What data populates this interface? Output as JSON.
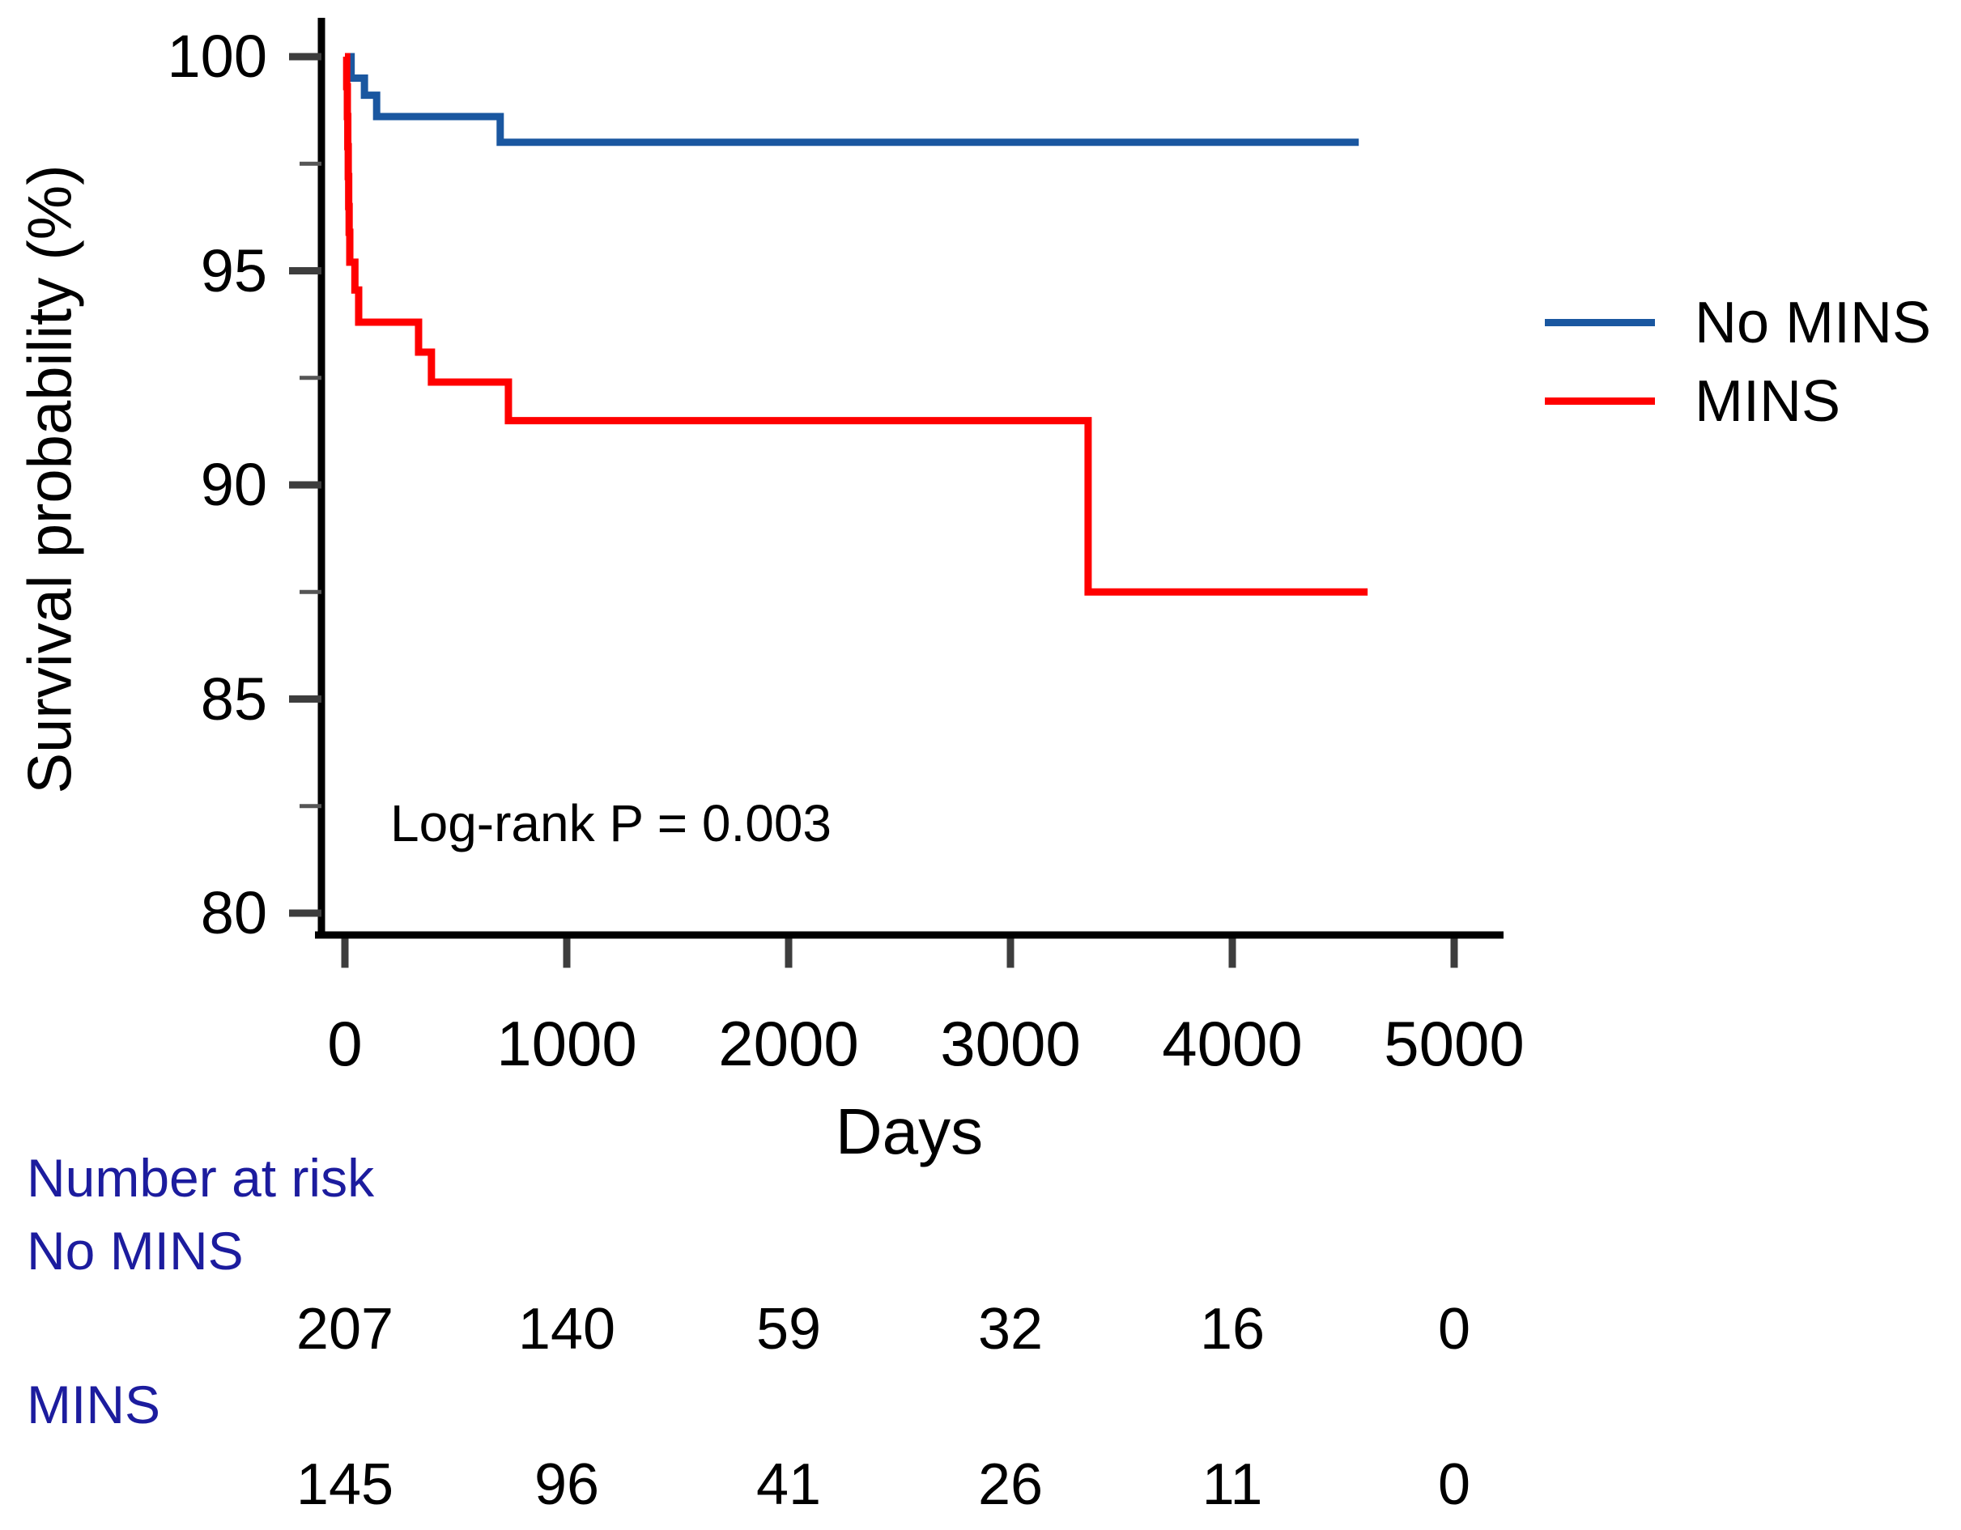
{
  "chart_data": {
    "type": "line",
    "variant": "kaplan_meier_step_curve",
    "title": "",
    "xlabel": "Days",
    "ylabel": "Survival probability (%)",
    "xlim": [
      0,
      5230
    ],
    "ylim": [
      79,
      100.5
    ],
    "x_ticks": [
      0,
      1000,
      2000,
      3000,
      4000,
      5000
    ],
    "y_ticks_major": [
      100,
      95,
      90,
      85,
      80
    ],
    "y_ticks_minor": [
      97.5,
      92.5,
      87.5,
      82.5
    ],
    "grid": "off",
    "legend_position": "right-upper",
    "annotation": {
      "text": "Log-rank P = 0.003"
    },
    "series": [
      {
        "name": "No MINS",
        "color": "#1A57A0",
        "steps": [
          [
            0,
            100
          ],
          [
            28,
            99.5
          ],
          [
            88,
            99.1
          ],
          [
            143,
            98.6
          ],
          [
            700,
            98.0
          ],
          [
            4570,
            98.0
          ]
        ]
      },
      {
        "name": "MINS",
        "color": "#FF0000",
        "steps": [
          [
            0,
            100
          ],
          [
            8,
            99.3
          ],
          [
            11,
            98.6
          ],
          [
            13,
            97.9
          ],
          [
            15,
            97.2
          ],
          [
            17,
            96.5
          ],
          [
            19,
            95.9
          ],
          [
            22,
            95.2
          ],
          [
            45,
            94.55
          ],
          [
            62,
            93.8
          ],
          [
            332,
            93.1
          ],
          [
            390,
            92.4
          ],
          [
            737,
            91.5
          ],
          [
            3350,
            87.5
          ],
          [
            4610,
            87.5
          ]
        ]
      }
    ],
    "number_at_risk": {
      "title": "Number at risk",
      "label_color": "#1C1C9E",
      "times": [
        0,
        1000,
        2000,
        3000,
        4000,
        5000
      ],
      "rows": [
        {
          "label": "No MINS",
          "counts": [
            207,
            140,
            59,
            32,
            16,
            0
          ]
        },
        {
          "label": "MINS",
          "counts": [
            145,
            96,
            41,
            26,
            11,
            0
          ]
        }
      ]
    }
  }
}
